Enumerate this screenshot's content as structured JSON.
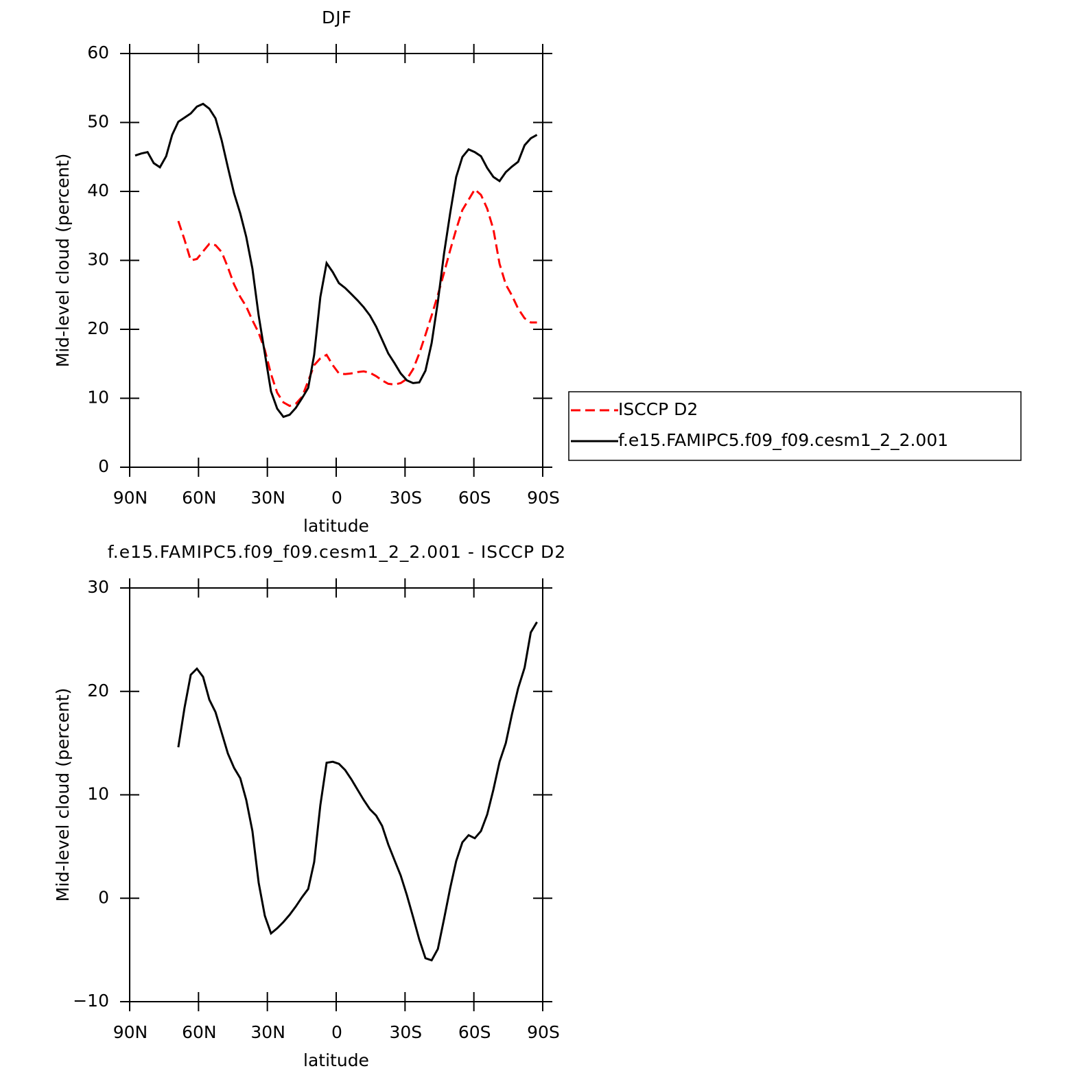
{
  "chart_data": [
    {
      "type": "line",
      "title": "DJF",
      "xlabel": "latitude",
      "ylabel": "Mid-level cloud (percent)",
      "x": [
        87.6,
        84.9,
        82.2,
        79.5,
        76.8,
        74.1,
        71.5,
        68.8,
        66.1,
        63.4,
        60.7,
        58.0,
        55.3,
        52.6,
        49.9,
        47.2,
        44.5,
        41.8,
        39.2,
        36.5,
        33.8,
        31.1,
        28.4,
        25.7,
        23.0,
        20.3,
        17.6,
        14.9,
        12.2,
        9.6,
        6.9,
        4.2,
        1.5,
        -1.2,
        -3.9,
        -6.6,
        -9.3,
        -12.0,
        -14.7,
        -17.4,
        -20.0,
        -22.7,
        -25.4,
        -28.1,
        -30.8,
        -33.5,
        -36.2,
        -38.9,
        -41.6,
        -44.3,
        -47.0,
        -49.7,
        -52.3,
        -55.0,
        -57.7,
        -60.4,
        -63.1,
        -65.8,
        -68.5,
        -71.2,
        -73.9,
        -76.6,
        -79.3,
        -82.1,
        -84.8,
        -87.5
      ],
      "xlim": [
        90,
        -90
      ],
      "xticks": [
        {
          "value": 90,
          "label": "90N"
        },
        {
          "value": 60,
          "label": "60N"
        },
        {
          "value": 30,
          "label": "30N"
        },
        0,
        {
          "value": -30,
          "label": "30S"
        },
        {
          "value": -60,
          "label": "60S"
        },
        {
          "value": -90,
          "label": "90S"
        }
      ],
      "ylim": [
        0,
        60
      ],
      "yticks": [
        0,
        10,
        20,
        30,
        40,
        50,
        60
      ],
      "legend": "right",
      "series": [
        {
          "name": "ISCCP D2",
          "color": "#ff0000",
          "linestyle": "dashed",
          "values": [
            null,
            null,
            null,
            null,
            null,
            null,
            null,
            35.7,
            33.0,
            30.0,
            30.2,
            31.3,
            32.4,
            32.2,
            31.2,
            29.0,
            26.5,
            24.7,
            23.3,
            21.3,
            19.5,
            17.0,
            13.5,
            10.8,
            9.4,
            8.9,
            9.2,
            10.2,
            12.5,
            14.8,
            15.8,
            16.3,
            14.8,
            13.6,
            13.5,
            13.6,
            13.8,
            13.9,
            13.7,
            13.2,
            12.6,
            12.1,
            12.0,
            12.2,
            12.8,
            14.2,
            16.5,
            19.2,
            22.0,
            25.0,
            28.2,
            31.5,
            34.5,
            37.3,
            38.8,
            40.3,
            39.5,
            37.5,
            34.5,
            29.5,
            26.5,
            24.9,
            23.0,
            21.6,
            21.0,
            21.0
          ]
        },
        {
          "name": "f.e15.FAMIPC5.f09_f09.cesm1_2_2.001",
          "color": "#000000",
          "linestyle": "solid",
          "values": [
            45.2,
            45.5,
            45.7,
            44.1,
            43.5,
            45.1,
            48.2,
            50.1,
            50.7,
            51.3,
            52.3,
            52.7,
            52.0,
            50.6,
            47.4,
            43.5,
            39.7,
            36.8,
            33.4,
            28.8,
            22.0,
            16.5,
            11.0,
            8.5,
            7.3,
            7.6,
            8.6,
            10.0,
            11.5,
            16.3,
            24.7,
            29.6,
            28.3,
            26.7,
            26.0,
            25.1,
            24.2,
            23.2,
            22.0,
            20.4,
            18.5,
            16.5,
            15.1,
            13.6,
            12.6,
            12.2,
            12.3,
            14.0,
            18.0,
            24.0,
            31.0,
            36.9,
            42.1,
            45.0,
            46.1,
            45.7,
            45.1,
            43.4,
            42.1,
            41.5,
            42.8,
            43.6,
            44.3,
            46.7,
            47.7,
            48.2
          ]
        }
      ]
    },
    {
      "type": "line",
      "title": "f.e15.FAMIPC5.f09_f09.cesm1_2_2.001 - ISCCP D2",
      "xlabel": "latitude",
      "ylabel": "Mid-level cloud (percent)",
      "x": [
        87.6,
        84.9,
        82.2,
        79.5,
        76.8,
        74.1,
        71.5,
        68.8,
        66.1,
        63.4,
        60.7,
        58.0,
        55.3,
        52.6,
        49.9,
        47.2,
        44.5,
        41.8,
        39.2,
        36.5,
        33.8,
        31.1,
        28.4,
        25.7,
        23.0,
        20.3,
        17.6,
        14.9,
        12.2,
        9.6,
        6.9,
        4.2,
        1.5,
        -1.2,
        -3.9,
        -6.6,
        -9.3,
        -12.0,
        -14.7,
        -17.4,
        -20.0,
        -22.7,
        -25.4,
        -28.1,
        -30.8,
        -33.5,
        -36.2,
        -38.9,
        -41.6,
        -44.3,
        -47.0,
        -49.7,
        -52.3,
        -55.0,
        -57.7,
        -60.4,
        -63.1,
        -65.8,
        -68.5,
        -71.2,
        -73.9,
        -76.6,
        -79.3,
        -82.1,
        -84.8,
        -87.5
      ],
      "xlim": [
        90,
        -90
      ],
      "xticks": [
        {
          "value": 90,
          "label": "90N"
        },
        {
          "value": 60,
          "label": "60N"
        },
        {
          "value": 30,
          "label": "30N"
        },
        0,
        {
          "value": -30,
          "label": "30S"
        },
        {
          "value": -60,
          "label": "60S"
        },
        {
          "value": -90,
          "label": "90S"
        }
      ],
      "ylim": [
        -10,
        30
      ],
      "yticks": [
        {
          "value": -10,
          "label": "−10"
        },
        0,
        10,
        20,
        30
      ],
      "series": [
        {
          "color": "#000000",
          "linestyle": "solid",
          "values": [
            null,
            null,
            null,
            null,
            null,
            null,
            null,
            14.6,
            18.4,
            21.6,
            22.2,
            21.4,
            19.2,
            18.0,
            16.0,
            14.0,
            12.6,
            11.6,
            9.5,
            6.5,
            1.5,
            -1.7,
            -3.4,
            -2.9,
            -2.3,
            -1.6,
            -0.8,
            0.1,
            0.9,
            3.5,
            9.0,
            13.1,
            13.2,
            13.0,
            12.4,
            11.5,
            10.5,
            9.5,
            8.6,
            8.0,
            7.0,
            5.2,
            3.7,
            2.2,
            0.3,
            -1.8,
            -4.0,
            -5.8,
            -6.0,
            -4.9,
            -2.0,
            1.0,
            3.6,
            5.4,
            6.1,
            5.8,
            6.5,
            8.1,
            10.5,
            13.2,
            15.0,
            17.8,
            20.3,
            22.3,
            25.7,
            26.7
          ]
        }
      ]
    }
  ]
}
